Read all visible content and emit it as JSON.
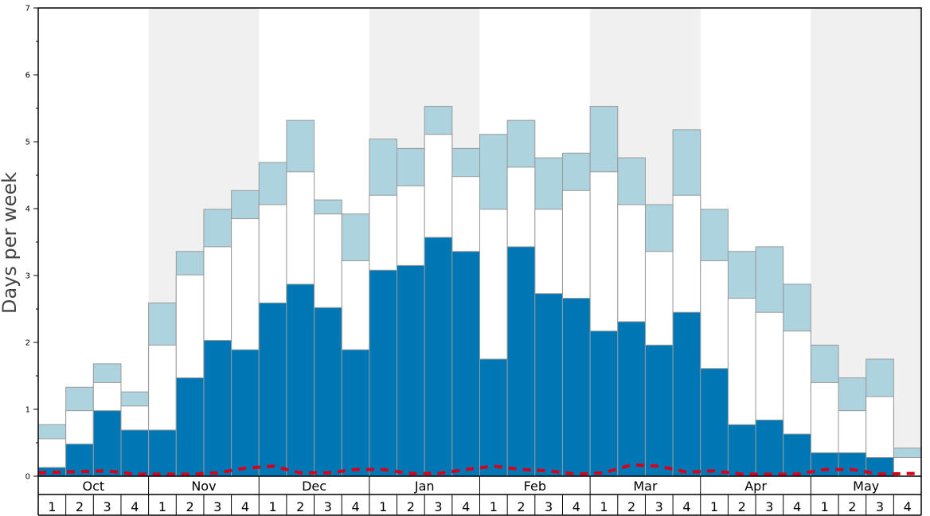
{
  "chart_data": {
    "type": "bar",
    "ylabel": "Days per week",
    "ylim": [
      0,
      7
    ],
    "yticks": [
      "0",
      "1",
      "2",
      "3",
      "4",
      "5",
      "6",
      "7"
    ],
    "months": [
      "Oct",
      "Nov",
      "Dec",
      "Jan",
      "Feb",
      "Mar",
      "Apr",
      "May"
    ],
    "week_labels": [
      "1",
      "2",
      "3",
      "4"
    ],
    "stack_levels": [
      {
        "values": [
          0.13,
          0.48,
          0.98,
          0.69,
          0.69,
          1.47,
          2.03,
          1.89,
          2.59,
          2.87,
          2.52,
          1.89,
          3.08,
          3.15,
          3.57,
          3.36,
          1.75,
          3.43,
          2.73,
          2.66,
          2.17,
          2.31,
          1.96,
          2.45,
          1.61,
          0.77,
          0.84,
          0.63,
          0.35,
          0.35,
          0.28,
          0.0
        ]
      },
      {
        "values": [
          0.56,
          0.98,
          1.4,
          1.05,
          1.96,
          3.01,
          3.43,
          3.85,
          4.06,
          4.55,
          3.92,
          3.22,
          4.2,
          4.34,
          5.11,
          4.48,
          3.99,
          4.62,
          3.99,
          4.27,
          4.55,
          4.06,
          3.36,
          4.2,
          3.22,
          2.66,
          2.45,
          2.17,
          1.4,
          0.98,
          1.19,
          0.28
        ]
      },
      {
        "values": [
          0.77,
          1.33,
          1.68,
          1.26,
          2.59,
          3.36,
          3.99,
          4.27,
          4.69,
          5.32,
          4.13,
          3.92,
          5.04,
          4.9,
          5.53,
          4.9,
          5.11,
          5.32,
          4.76,
          4.83,
          5.53,
          4.76,
          4.06,
          5.18,
          3.99,
          3.36,
          3.43,
          2.87,
          1.96,
          1.47,
          1.75,
          0.42
        ]
      }
    ],
    "dashed_line": {
      "values": [
        0.05,
        0.07,
        0.08,
        0.03,
        0.03,
        0.03,
        0.05,
        0.12,
        0.15,
        0.05,
        0.05,
        0.1,
        0.1,
        0.04,
        0.04,
        0.1,
        0.15,
        0.1,
        0.08,
        0.03,
        0.05,
        0.17,
        0.15,
        0.06,
        0.08,
        0.03,
        0.03,
        0.03,
        0.1,
        0.1,
        0.03,
        0.04
      ]
    },
    "grid": false,
    "colors": {
      "level1": "#0077b5",
      "level2": "#ffffff",
      "level3": "#add3df",
      "bar_edge": "#9a9a9a",
      "alt_month_band": "#f0f0f0",
      "dashed_line": "#d7001b",
      "axis": "#000000"
    }
  }
}
